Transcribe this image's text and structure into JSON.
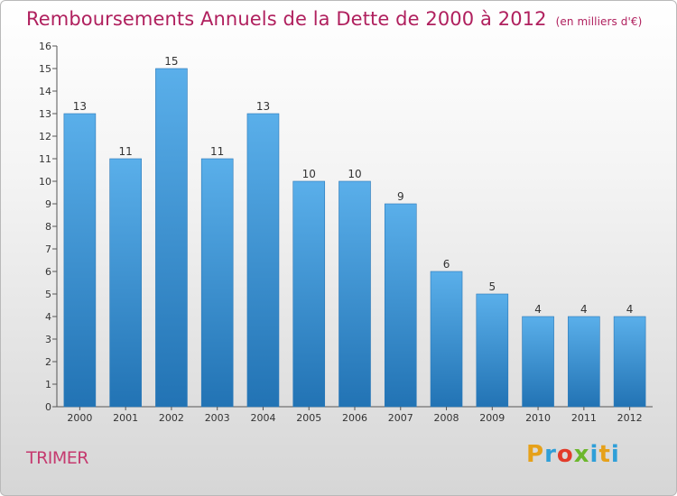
{
  "title": "Remboursements Annuels de la Dette de 2000 à 2012",
  "unit": "(en milliers d'€)",
  "commune": "TRIMER",
  "brand": {
    "letters": [
      "P",
      "r",
      "o",
      "x",
      "i",
      "t",
      "i"
    ],
    "colors": [
      "#e6a11a",
      "#2f9fd8",
      "#e23b2a",
      "#6cb72d",
      "#2f9fd8",
      "#e6a11a",
      "#2f9fd8"
    ]
  },
  "chart_data": {
    "type": "bar",
    "categories": [
      "2000",
      "2001",
      "2002",
      "2003",
      "2004",
      "2005",
      "2006",
      "2007",
      "2008",
      "2009",
      "2010",
      "2011",
      "2012"
    ],
    "values": [
      13,
      11,
      15,
      11,
      13,
      10,
      10,
      9,
      6,
      5,
      4,
      4,
      4
    ],
    "ylim": [
      0,
      16
    ],
    "yticks": [
      0,
      1,
      2,
      3,
      4,
      5,
      6,
      7,
      8,
      9,
      10,
      11,
      12,
      13,
      14,
      15,
      16
    ],
    "grid": false,
    "bar_color": "#3a8fd2",
    "data_labels": true
  }
}
